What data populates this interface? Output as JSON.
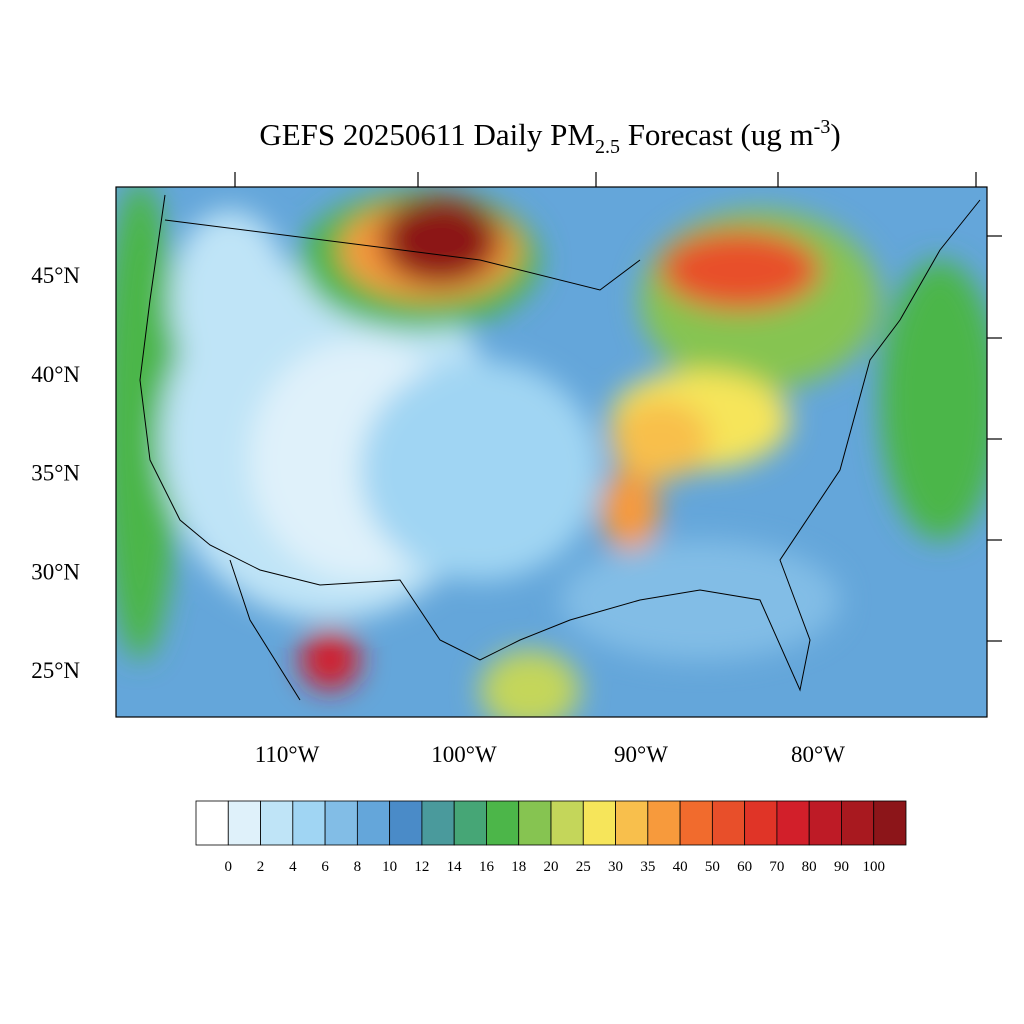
{
  "title": {
    "main": "GEFS 20250611 Daily PM",
    "subscript": "2.5",
    "middle": " Forecast (ug m",
    "superscript": "-3",
    "end": ")"
  },
  "map": {
    "lat_ticks": [
      {
        "value": 45,
        "label": "45°N"
      },
      {
        "value": 40,
        "label": "40°N"
      },
      {
        "value": 35,
        "label": "35°N"
      },
      {
        "value": 30,
        "label": "30°N"
      },
      {
        "value": 25,
        "label": "25°N"
      }
    ],
    "lon_ticks": [
      {
        "value": 110,
        "label": "110°W"
      },
      {
        "value": 100,
        "label": "100°W"
      },
      {
        "value": 90,
        "label": "90°W"
      },
      {
        "value": 80,
        "label": "80°W"
      }
    ]
  },
  "colorbar": {
    "levels": [
      0,
      2,
      4,
      6,
      8,
      10,
      12,
      14,
      16,
      18,
      20,
      25,
      30,
      35,
      40,
      50,
      60,
      70,
      80,
      90,
      100
    ],
    "colors": [
      "#ffffff",
      "#dff1fa",
      "#bfe4f7",
      "#a0d5f3",
      "#82bde6",
      "#64a6da",
      "#4a8bc8",
      "#4a9a9c",
      "#46a676",
      "#4cb649",
      "#86c451",
      "#c4d65a",
      "#f6e55a",
      "#f8bf4c",
      "#f79a3c",
      "#f16b2d",
      "#e84f2a",
      "#e03427",
      "#d21f2a",
      "#be1b26",
      "#a8191f",
      "#8c1519"
    ]
  }
}
